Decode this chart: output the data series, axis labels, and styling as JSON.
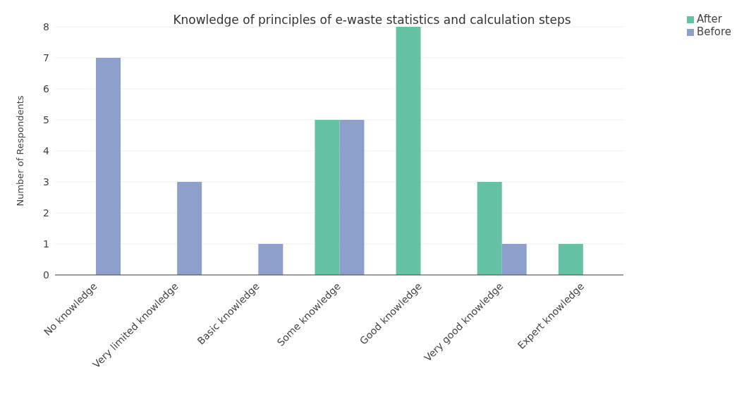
{
  "chart_data": {
    "type": "bar",
    "title": "Knowledge of principles of e-waste statistics and calculation steps",
    "ylabel": "Number of Respondents",
    "categories": [
      "No knowledge",
      "Very limited knowledge",
      "Basic knowledge",
      "Some knowledge",
      "Good knowledge",
      "Very good knowledge",
      "Expert knowledge"
    ],
    "series": [
      {
        "name": "After",
        "color": "#66c2a5",
        "values": [
          0,
          0,
          0,
          5,
          8,
          3,
          1
        ]
      },
      {
        "name": "Before",
        "color": "#8da0cb",
        "values": [
          7,
          3,
          1,
          5,
          0,
          1,
          0
        ]
      }
    ],
    "ylim": [
      0,
      8
    ],
    "yticks": [
      0,
      1,
      2,
      3,
      4,
      5,
      6,
      7,
      8
    ],
    "grid": "y",
    "legend": "top right"
  }
}
